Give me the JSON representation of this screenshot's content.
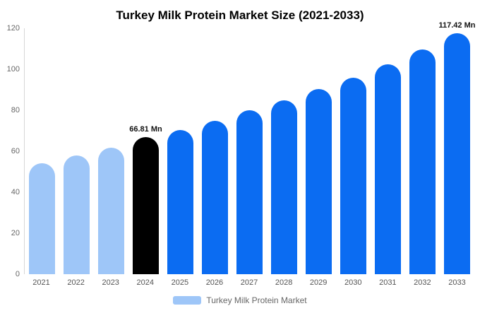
{
  "title": "Turkey Milk Protein Market Size (2021-2033)",
  "chart_data": {
    "type": "bar",
    "title": "Turkey Milk Protein Market Size (2021-2033)",
    "categories": [
      "2021",
      "2022",
      "2023",
      "2024",
      "2025",
      "2026",
      "2027",
      "2028",
      "2029",
      "2030",
      "2031",
      "2032",
      "2033"
    ],
    "values": [
      54,
      58,
      61.8,
      66.81,
      70.5,
      75,
      80,
      85,
      90.5,
      96,
      102.5,
      109.5,
      117.42
    ],
    "bar_colors": [
      "#9ec6f8",
      "#9ec6f8",
      "#9ec6f8",
      "#000000",
      "#0b6cf2",
      "#0b6cf2",
      "#0b6cf2",
      "#0b6cf2",
      "#0b6cf2",
      "#0b6cf2",
      "#0b6cf2",
      "#0b6cf2",
      "#0b6cf2"
    ],
    "annotations": [
      {
        "category": "2024",
        "text": "66.81 Mn"
      },
      {
        "category": "2033",
        "text": "117.42 Mn"
      }
    ],
    "xlabel": "",
    "ylabel": "",
    "ylim": [
      0,
      120
    ],
    "yticks": [
      0,
      20,
      40,
      60,
      80,
      100,
      120
    ],
    "grid": false,
    "legend_position": "bottom",
    "legend": [
      {
        "label": "Turkey Milk Protein Market",
        "color": "#9ec6f8"
      }
    ]
  }
}
